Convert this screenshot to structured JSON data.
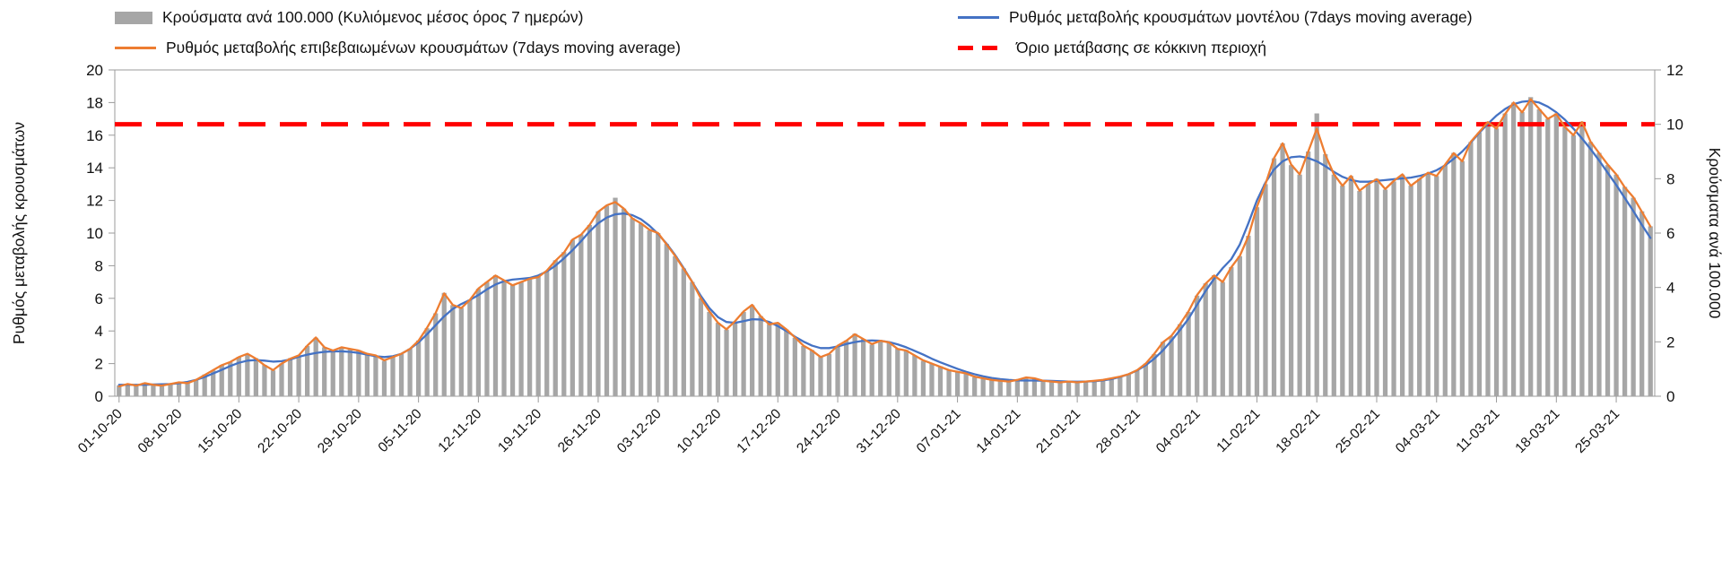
{
  "chart_data": {
    "type": "bar+line",
    "x_tick_every_n_days": 7,
    "x_tick_labels": [
      "01-10-20",
      "08-10-20",
      "15-10-20",
      "22-10-20",
      "29-10-20",
      "05-11-20",
      "12-11-20",
      "19-11-20",
      "26-11-20",
      "03-12-20",
      "10-12-20",
      "17-12-20",
      "24-12-20",
      "31-12-20",
      "07-01-21",
      "14-01-21",
      "21-01-21",
      "28-01-21",
      "04-02-21",
      "11-02-21",
      "18-02-21",
      "25-02-21",
      "04-03-21",
      "11-03-21",
      "18-03-21",
      "25-03-21"
    ],
    "left_axis": {
      "label": "Ρυθμός μεταβολής κρουσμάτων",
      "min": 0,
      "max": 20,
      "ticks": [
        0,
        2,
        4,
        6,
        8,
        10,
        12,
        14,
        16,
        18,
        20
      ]
    },
    "right_axis": {
      "label": "Κρούσματα ανά 100.000",
      "min": 0,
      "max": 12,
      "ticks": [
        0,
        2,
        4,
        6,
        8,
        10,
        12
      ]
    },
    "threshold": {
      "label": "Όριο μετάβασης σε κόκκινη περιοχή",
      "value_right_axis": 10,
      "value_left_axis": 16.67,
      "color": "#ff0000",
      "style": "dashed"
    },
    "series": [
      {
        "name": "Κρούσματα ανά 100.000 (Κυλιόμενος μέσος όρος 7 ημερών)",
        "type": "bar",
        "axis": "right",
        "color": "#a6a6a6",
        "values": [
          0.4,
          0.45,
          0.4,
          0.5,
          0.42,
          0.4,
          0.45,
          0.5,
          0.5,
          0.6,
          0.8,
          0.95,
          1.15,
          1.25,
          1.45,
          1.55,
          1.4,
          1.15,
          0.95,
          1.2,
          1.4,
          1.5,
          1.85,
          2.15,
          1.8,
          1.7,
          1.8,
          1.75,
          1.7,
          1.55,
          1.5,
          1.3,
          1.45,
          1.55,
          1.75,
          2.05,
          2.5,
          3.05,
          3.8,
          3.35,
          3.25,
          3.55,
          3.95,
          4.2,
          4.45,
          4.25,
          4.1,
          4.2,
          4.3,
          4.4,
          4.6,
          5.0,
          5.3,
          5.75,
          5.95,
          6.3,
          6.8,
          7.0,
          7.3,
          6.9,
          6.55,
          6.35,
          6.1,
          6.0,
          5.6,
          5.15,
          4.7,
          4.2,
          3.6,
          3.1,
          2.7,
          2.45,
          2.75,
          3.1,
          3.35,
          2.95,
          2.65,
          2.7,
          2.45,
          2.15,
          1.85,
          1.7,
          1.45,
          1.55,
          1.85,
          2.05,
          2.3,
          2.1,
          1.9,
          2.05,
          2.0,
          1.75,
          1.7,
          1.5,
          1.3,
          1.2,
          1.1,
          0.95,
          0.9,
          0.85,
          0.7,
          0.65,
          0.6,
          0.55,
          0.55,
          0.6,
          0.7,
          0.65,
          0.55,
          0.55,
          0.5,
          0.55,
          0.5,
          0.55,
          0.55,
          0.6,
          0.65,
          0.7,
          0.8,
          0.95,
          1.2,
          1.55,
          2.0,
          2.2,
          2.65,
          3.1,
          3.7,
          4.15,
          4.45,
          4.2,
          4.75,
          5.15,
          5.9,
          6.95,
          7.8,
          8.75,
          9.3,
          8.5,
          8.15,
          9.0,
          10.4,
          8.9,
          8.15,
          7.75,
          8.1,
          7.55,
          7.8,
          8.0,
          7.6,
          7.9,
          8.15,
          7.75,
          8.0,
          8.2,
          8.1,
          8.5,
          8.95,
          8.65,
          9.35,
          9.7,
          10.1,
          9.85,
          10.4,
          10.8,
          10.45,
          11.0,
          10.55,
          10.2,
          10.4,
          9.9,
          9.6,
          10.1,
          9.35,
          8.95,
          8.5,
          8.15,
          7.7,
          7.3,
          6.8,
          6.25
        ]
      },
      {
        "name": "Ρυθμός μεταβολής κρουσμάτων μοντέλου (7days moving average)",
        "type": "line",
        "axis": "left",
        "color": "#4472c4",
        "values": [
          0.7,
          0.7,
          0.7,
          0.7,
          0.72,
          0.73,
          0.75,
          0.8,
          0.88,
          1.0,
          1.18,
          1.4,
          1.62,
          1.85,
          2.05,
          2.18,
          2.22,
          2.18,
          2.12,
          2.15,
          2.25,
          2.42,
          2.55,
          2.65,
          2.72,
          2.75,
          2.75,
          2.72,
          2.65,
          2.55,
          2.45,
          2.4,
          2.45,
          2.6,
          2.9,
          3.3,
          3.8,
          4.35,
          4.9,
          5.35,
          5.65,
          5.9,
          6.2,
          6.55,
          6.85,
          7.05,
          7.15,
          7.2,
          7.25,
          7.4,
          7.65,
          8.0,
          8.45,
          8.95,
          9.5,
          10.1,
          10.6,
          10.95,
          11.15,
          11.2,
          11.1,
          10.85,
          10.45,
          9.95,
          9.35,
          8.65,
          7.85,
          7.0,
          6.15,
          5.4,
          4.85,
          4.55,
          4.5,
          4.6,
          4.72,
          4.7,
          4.55,
          4.3,
          4.0,
          3.65,
          3.35,
          3.1,
          2.95,
          2.95,
          3.05,
          3.2,
          3.32,
          3.4,
          3.42,
          3.4,
          3.32,
          3.18,
          3.0,
          2.78,
          2.55,
          2.3,
          2.08,
          1.88,
          1.68,
          1.5,
          1.35,
          1.22,
          1.12,
          1.05,
          1.0,
          0.97,
          0.96,
          0.96,
          0.95,
          0.94,
          0.92,
          0.9,
          0.89,
          0.9,
          0.92,
          0.97,
          1.05,
          1.18,
          1.35,
          1.58,
          1.9,
          2.3,
          2.8,
          3.4,
          4.05,
          4.75,
          5.6,
          6.45,
          7.2,
          7.85,
          8.4,
          9.3,
          10.6,
          12.0,
          13.1,
          13.9,
          14.4,
          14.65,
          14.7,
          14.6,
          14.4,
          14.1,
          13.75,
          13.45,
          13.25,
          13.15,
          13.15,
          13.2,
          13.25,
          13.3,
          13.35,
          13.4,
          13.5,
          13.65,
          13.85,
          14.15,
          14.55,
          15.0,
          15.55,
          16.15,
          16.7,
          17.2,
          17.6,
          17.9,
          18.05,
          18.1,
          18.0,
          17.75,
          17.4,
          16.95,
          16.4,
          15.8,
          15.15,
          14.45,
          13.7,
          12.95,
          12.15,
          11.35,
          10.5,
          9.7
        ]
      },
      {
        "name": "Ρυθμός μεταβολής επιβεβαιωμένων κρουσμάτων (7days moving average)",
        "type": "line",
        "axis": "left",
        "color": "#ed7d31",
        "values": [
          0.6,
          0.75,
          0.65,
          0.8,
          0.7,
          0.65,
          0.75,
          0.85,
          0.8,
          1.0,
          1.3,
          1.6,
          1.9,
          2.1,
          2.4,
          2.6,
          2.3,
          1.9,
          1.6,
          2.0,
          2.3,
          2.5,
          3.1,
          3.6,
          3.0,
          2.8,
          3.0,
          2.9,
          2.8,
          2.6,
          2.5,
          2.2,
          2.4,
          2.6,
          2.9,
          3.4,
          4.2,
          5.1,
          6.3,
          5.6,
          5.4,
          5.9,
          6.6,
          7.0,
          7.4,
          7.1,
          6.8,
          7.0,
          7.2,
          7.3,
          7.7,
          8.3,
          8.8,
          9.6,
          9.9,
          10.5,
          11.3,
          11.7,
          11.9,
          11.5,
          10.9,
          10.6,
          10.2,
          10.0,
          9.3,
          8.6,
          7.8,
          7.0,
          6.0,
          5.2,
          4.5,
          4.1,
          4.6,
          5.2,
          5.6,
          4.9,
          4.4,
          4.5,
          4.1,
          3.6,
          3.1,
          2.8,
          2.4,
          2.6,
          3.1,
          3.4,
          3.8,
          3.5,
          3.2,
          3.4,
          3.3,
          2.9,
          2.8,
          2.5,
          2.2,
          2.0,
          1.8,
          1.6,
          1.5,
          1.4,
          1.2,
          1.1,
          1.0,
          0.95,
          0.9,
          1.0,
          1.15,
          1.1,
          0.95,
          0.9,
          0.85,
          0.9,
          0.85,
          0.9,
          0.95,
          1.0,
          1.1,
          1.2,
          1.35,
          1.6,
          2.0,
          2.6,
          3.3,
          3.7,
          4.4,
          5.2,
          6.2,
          6.9,
          7.4,
          7.0,
          7.9,
          8.6,
          9.8,
          11.6,
          13.0,
          14.6,
          15.5,
          14.2,
          13.6,
          15.0,
          16.4,
          14.8,
          13.6,
          12.9,
          13.5,
          12.6,
          13.0,
          13.3,
          12.7,
          13.2,
          13.6,
          12.9,
          13.3,
          13.7,
          13.5,
          14.2,
          14.9,
          14.4,
          15.6,
          16.2,
          16.8,
          16.4,
          17.3,
          18.0,
          17.4,
          18.2,
          17.6,
          17.0,
          17.3,
          16.5,
          16.0,
          16.8,
          15.6,
          14.9,
          14.2,
          13.6,
          12.8,
          12.2,
          11.3,
          10.4
        ]
      }
    ]
  }
}
